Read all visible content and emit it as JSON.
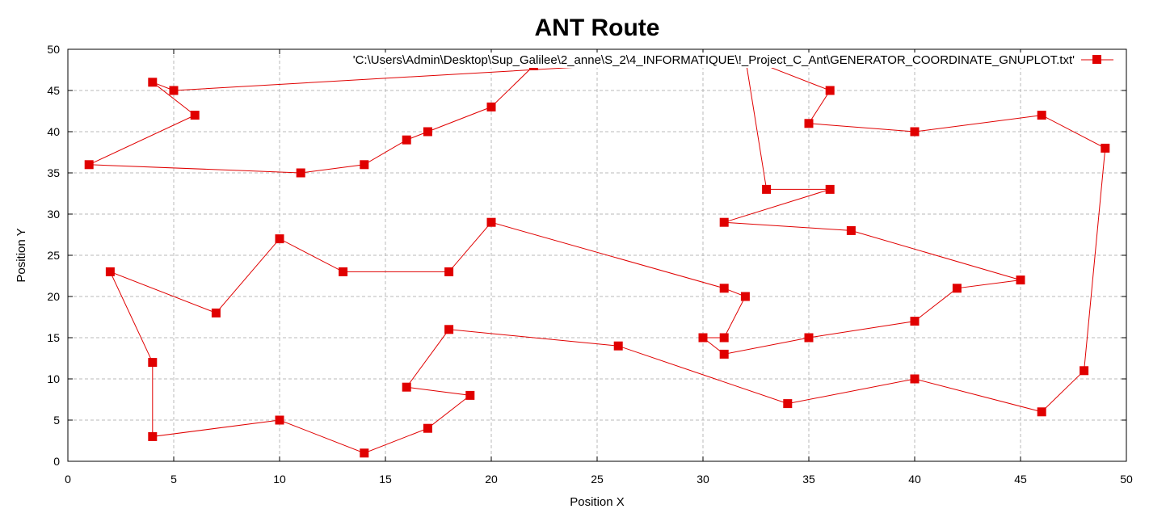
{
  "chart_data": {
    "type": "line",
    "title": "ANT Route",
    "xlabel": "Position X",
    "ylabel": "Position Y",
    "xlim": [
      0,
      50
    ],
    "ylim": [
      0,
      50
    ],
    "xticks": [
      "0",
      "5",
      "10",
      "15",
      "20",
      "25",
      "30",
      "35",
      "40",
      "45",
      "50"
    ],
    "yticks": [
      "0",
      "5",
      "10",
      "15",
      "20",
      "25",
      "30",
      "35",
      "40",
      "45",
      "50"
    ],
    "grid": true,
    "legend_position": "top-right",
    "series": [
      {
        "name": "'C:\\Users\\Admin\\Desktop\\Sup_Galilee\\2_anne\\S_2\\4_INFORMATIQUE\\!_Project_C_Ant\\GENERATOR_COORDINATE_GNUPLOT.txt'",
        "color": "#e00000",
        "marker": "square",
        "points": [
          [
            20,
            49
          ],
          [
            32,
            49
          ],
          [
            36,
            45
          ],
          [
            35,
            41
          ],
          [
            40,
            40
          ],
          [
            46,
            42
          ],
          [
            49,
            38
          ],
          [
            48,
            11
          ],
          [
            46,
            6
          ],
          [
            40,
            10
          ],
          [
            34,
            7
          ],
          [
            26,
            14
          ],
          [
            18,
            16
          ],
          [
            16,
            9
          ],
          [
            19,
            8
          ],
          [
            17,
            4
          ],
          [
            14,
            1
          ],
          [
            10,
            5
          ],
          [
            4,
            3
          ],
          [
            4,
            12
          ],
          [
            2,
            23
          ],
          [
            7,
            18
          ],
          [
            10,
            27
          ],
          [
            13,
            23
          ],
          [
            18,
            23
          ],
          [
            20,
            29
          ],
          [
            31,
            21
          ],
          [
            32,
            20
          ],
          [
            31,
            15
          ],
          [
            30,
            15
          ],
          [
            31,
            13
          ],
          [
            35,
            15
          ],
          [
            40,
            17
          ],
          [
            42,
            21
          ],
          [
            45,
            22
          ],
          [
            37,
            28
          ],
          [
            31,
            29
          ],
          [
            36,
            33
          ],
          [
            33,
            33
          ],
          [
            32,
            49
          ],
          [
            22,
            48
          ],
          [
            20,
            43
          ],
          [
            17,
            40
          ],
          [
            16,
            39
          ],
          [
            14,
            36
          ],
          [
            11,
            35
          ],
          [
            1,
            36
          ],
          [
            6,
            42
          ],
          [
            4,
            46
          ],
          [
            5,
            45
          ],
          [
            32,
            49
          ]
        ]
      }
    ]
  }
}
